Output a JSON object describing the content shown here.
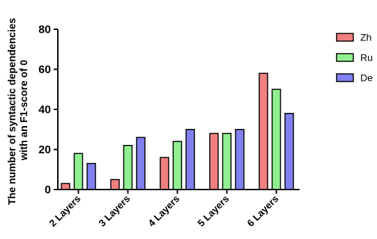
{
  "chart_data": {
    "type": "bar",
    "categories": [
      "2 Layers",
      "3 Layers",
      "4 Layers",
      "5 Layers",
      "6 Layers"
    ],
    "series": [
      {
        "name": "Zh",
        "color": "#f08080",
        "values": [
          3,
          5,
          16,
          28,
          58
        ]
      },
      {
        "name": "Ru",
        "color": "#90f090",
        "values": [
          18,
          22,
          24,
          28,
          50
        ]
      },
      {
        "name": "De",
        "color": "#8080f0",
        "values": [
          13,
          26,
          30,
          30,
          38
        ]
      }
    ],
    "ylabel_lines": [
      "The number of syntactic dependencies",
      "with an F1-score of 0"
    ],
    "xlabel": "",
    "ylim": [
      0,
      80
    ],
    "yticks": [
      0,
      20,
      40,
      60,
      80
    ],
    "grid": false,
    "legend_position": "right"
  }
}
